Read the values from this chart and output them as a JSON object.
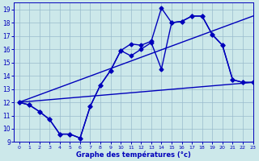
{
  "xlabel": "Graphe des températures (°c)",
  "xlim": [
    -0.5,
    23
  ],
  "ylim": [
    9,
    19.5
  ],
  "yticks": [
    9,
    10,
    11,
    12,
    13,
    14,
    15,
    16,
    17,
    18,
    19
  ],
  "xticks": [
    0,
    1,
    2,
    3,
    4,
    5,
    6,
    7,
    8,
    9,
    10,
    11,
    12,
    13,
    14,
    15,
    16,
    17,
    18,
    19,
    20,
    21,
    22,
    23
  ],
  "bg_color": "#cce8ea",
  "line_color": "#0000bb",
  "grid_color": "#99bbcc",
  "curve1_x": [
    0,
    1,
    2,
    3,
    4,
    5,
    6,
    7,
    8,
    9,
    10,
    11,
    12,
    13,
    14,
    15,
    16,
    17,
    18,
    19,
    20,
    21,
    22,
    23
  ],
  "curve1_y": [
    12.0,
    11.8,
    11.3,
    10.7,
    9.6,
    9.6,
    9.3,
    11.7,
    13.3,
    14.4,
    15.9,
    16.4,
    16.3,
    16.6,
    19.1,
    18.0,
    18.1,
    18.5,
    18.5,
    17.1,
    16.3,
    13.7,
    13.5,
    13.5
  ],
  "curve2_x": [
    0,
    1,
    2,
    3,
    4,
    5,
    6,
    7,
    8,
    9,
    10,
    11,
    12,
    13,
    14,
    15,
    16,
    17,
    18,
    19,
    20,
    21,
    22,
    23
  ],
  "curve2_y": [
    12.0,
    11.8,
    11.3,
    10.7,
    9.6,
    9.6,
    9.3,
    11.7,
    13.3,
    14.4,
    15.9,
    15.5,
    16.0,
    16.5,
    14.5,
    18.0,
    18.1,
    18.5,
    18.5,
    17.1,
    16.3,
    13.7,
    13.5,
    13.5
  ],
  "trend1_x": [
    0,
    23
  ],
  "trend1_y": [
    12.0,
    13.5
  ],
  "trend2_x": [
    0,
    23
  ],
  "trend2_y": [
    12.0,
    18.5
  ],
  "marker_size": 2.5,
  "linewidth": 1.0
}
